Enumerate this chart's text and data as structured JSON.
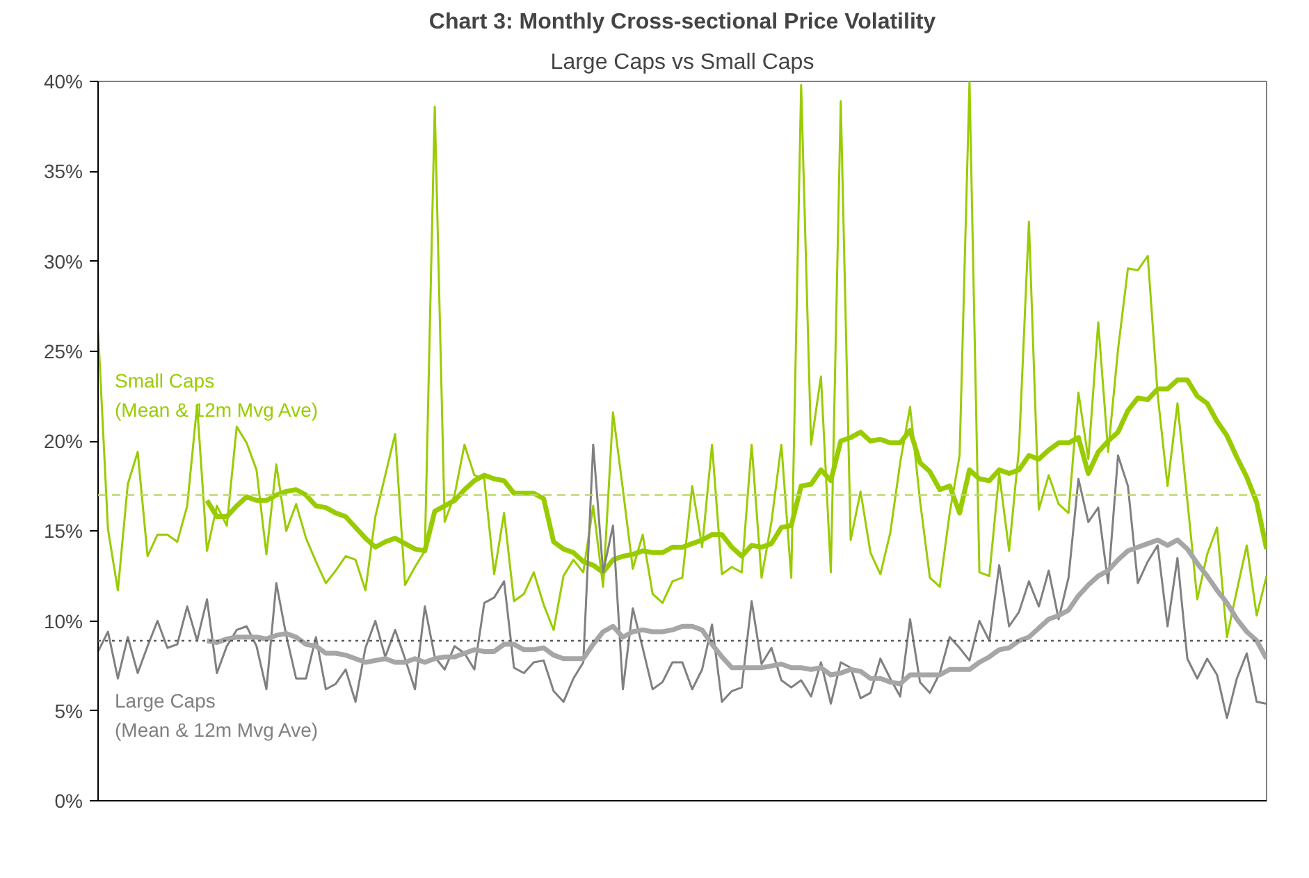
{
  "chart_data": {
    "type": "line",
    "title": "Chart 3: Monthly Cross-sectional Price Volatility",
    "subtitle": "Large Caps vs Small Caps",
    "categories": [
      null,
      null,
      null,
      null,
      null,
      null,
      null,
      null,
      null,
      null,
      null,
      null,
      null,
      null,
      null,
      null,
      null,
      null,
      null,
      null,
      null,
      null,
      null,
      null,
      null,
      null,
      null,
      null,
      null,
      null,
      null,
      null,
      null,
      null,
      null,
      null,
      null,
      null,
      null,
      null,
      null,
      null,
      null,
      null,
      null,
      null,
      null,
      null,
      null,
      null,
      null,
      null,
      null,
      null,
      null,
      null,
      null,
      null,
      null,
      null,
      null,
      null,
      null,
      null,
      null,
      null,
      null,
      null,
      null,
      null,
      null,
      null,
      null,
      null,
      null,
      null,
      null,
      null,
      null,
      null,
      null,
      null,
      null,
      null,
      null,
      null,
      null,
      null,
      null,
      null,
      null,
      null,
      null,
      null,
      null,
      null,
      null,
      null,
      null,
      null,
      null,
      null,
      null,
      null,
      null,
      null,
      null,
      null,
      null,
      null,
      null,
      null,
      null,
      null,
      null,
      null,
      null,
      null,
      null
    ],
    "series": [
      {
        "color": "#99cc00",
        "values": [
          26.2,
          15.1,
          11.7,
          17.6,
          19.4,
          13.6,
          14.8,
          14.8,
          14.4,
          16.4,
          22.0,
          13.9,
          16.4,
          15.3,
          20.8,
          19.9,
          18.4,
          13.7,
          18.7,
          15.0,
          16.5,
          14.6,
          13.3,
          12.1,
          12.8,
          13.6,
          13.4,
          11.7,
          15.8,
          18.1,
          20.4,
          12.0,
          13.0,
          13.9,
          38.6,
          15.5,
          17.0,
          19.8,
          18.1,
          17.9,
          12.6,
          16.0,
          11.1,
          11.5,
          12.7,
          10.9,
          9.5,
          12.5,
          13.4,
          12.7,
          16.4,
          11.9,
          21.6,
          17.3,
          12.9,
          14.8,
          11.5,
          11.0,
          12.2,
          12.4,
          17.5,
          14.1,
          19.8,
          12.6,
          13.0,
          12.7,
          19.8,
          12.4,
          15.5,
          19.8,
          12.4,
          39.8,
          19.8,
          23.6,
          12.7,
          38.9,
          14.5,
          17.2,
          13.8,
          12.6,
          14.9,
          18.8,
          21.9,
          16.7,
          12.4,
          11.9,
          16.0,
          19.2,
          40.0,
          12.7,
          12.5,
          18.2,
          13.9,
          19.6,
          32.2,
          16.2,
          18.1,
          16.5,
          16.0,
          22.7,
          19.0,
          26.6,
          19.4,
          25.1,
          29.6,
          29.5,
          30.3,
          22.6,
          17.5,
          22.1,
          16.7,
          11.2,
          13.7,
          15.2,
          9.1,
          11.7,
          14.2,
          10.3,
          12.5
        ]
      },
      {
        "color": "#99cc00",
        "values": [
          null,
          null,
          null,
          null,
          null,
          null,
          null,
          null,
          null,
          null,
          null,
          16.7,
          15.8,
          15.8,
          16.4,
          16.9,
          16.7,
          16.7,
          17.0,
          17.2,
          17.3,
          17.0,
          16.4,
          16.3,
          16.0,
          15.8,
          15.2,
          14.6,
          14.1,
          14.4,
          14.6,
          14.3,
          14.0,
          13.9,
          16.1,
          16.4,
          16.7,
          17.3,
          17.8,
          18.1,
          17.9,
          17.8,
          17.1,
          17.1,
          17.1,
          16.8,
          14.4,
          14.0,
          13.8,
          13.3,
          13.1,
          12.7,
          13.4,
          13.6,
          13.7,
          13.9,
          13.8,
          13.8,
          14.1,
          14.1,
          14.3,
          14.5,
          14.8,
          14.8,
          14.1,
          13.6,
          14.2,
          14.1,
          14.3,
          15.2,
          15.3,
          17.5,
          17.6,
          18.4,
          17.8,
          20.0,
          20.2,
          20.5,
          20.0,
          20.1,
          19.9,
          19.9,
          20.6,
          18.8,
          18.3,
          17.3,
          17.5,
          16.0,
          18.4,
          17.9,
          17.8,
          18.4,
          18.2,
          18.4,
          19.2,
          19.0,
          19.5,
          19.9,
          19.9,
          20.2,
          18.2,
          19.4,
          20.0,
          20.5,
          21.7,
          22.4,
          22.3,
          22.9,
          22.9,
          23.4,
          23.4,
          22.5,
          22.1,
          21.1,
          20.3,
          19.1,
          18.0,
          16.6,
          14.0
        ]
      },
      {
        "color": "#808080",
        "values": [
          8.3,
          9.4,
          6.8,
          9.1,
          7.1,
          8.6,
          10.0,
          8.5,
          8.7,
          10.8,
          8.9,
          11.2,
          7.1,
          8.6,
          9.5,
          9.7,
          8.6,
          6.2,
          12.1,
          9.2,
          6.8,
          6.8,
          9.1,
          6.2,
          6.5,
          7.3,
          5.5,
          8.5,
          10.0,
          8.0,
          9.5,
          7.9,
          6.2,
          10.8,
          8.0,
          7.3,
          8.6,
          8.2,
          7.3,
          11.0,
          11.3,
          12.2,
          7.4,
          7.1,
          7.7,
          7.8,
          6.1,
          5.5,
          6.8,
          7.7,
          19.8,
          12.7,
          15.3,
          6.2,
          10.7,
          8.5,
          6.2,
          6.6,
          7.7,
          7.7,
          6.2,
          7.3,
          9.8,
          5.5,
          6.1,
          6.3,
          11.1,
          7.6,
          8.5,
          6.7,
          6.3,
          6.7,
          5.8,
          7.7,
          5.4,
          7.7,
          7.4,
          5.7,
          6.0,
          7.9,
          6.8,
          5.8,
          10.1,
          6.6,
          6.0,
          7.1,
          9.1,
          8.5,
          7.8,
          10.0,
          8.9,
          13.1,
          9.7,
          10.5,
          12.2,
          10.8,
          12.8,
          10.1,
          12.4,
          17.9,
          15.5,
          16.3,
          12.1,
          19.2,
          17.5,
          12.1,
          13.3,
          14.2,
          9.7,
          13.5,
          7.9,
          6.8,
          7.9,
          7.0,
          4.6,
          6.8,
          8.2,
          5.5,
          5.4
        ]
      },
      {
        "color": "#a6a6a6",
        "values": [
          null,
          null,
          null,
          null,
          null,
          null,
          null,
          null,
          null,
          null,
          null,
          8.9,
          8.8,
          9.0,
          9.1,
          9.1,
          9.1,
          9.0,
          9.2,
          9.3,
          9.1,
          8.7,
          8.6,
          8.2,
          8.2,
          8.1,
          7.9,
          7.7,
          7.8,
          7.9,
          7.7,
          7.7,
          7.9,
          7.7,
          7.9,
          8.0,
          8.0,
          8.2,
          8.4,
          8.3,
          8.3,
          8.7,
          8.7,
          8.4,
          8.4,
          8.5,
          8.1,
          7.9,
          7.9,
          7.9,
          8.7,
          9.4,
          9.7,
          9.1,
          9.4,
          9.5,
          9.4,
          9.4,
          9.5,
          9.7,
          9.7,
          9.5,
          8.7,
          8.0,
          7.4,
          7.4,
          7.4,
          7.4,
          7.5,
          7.6,
          7.4,
          7.4,
          7.3,
          7.4,
          7.0,
          7.1,
          7.3,
          7.2,
          6.8,
          6.8,
          6.6,
          6.5,
          7.0,
          7.0,
          7.0,
          7.0,
          7.3,
          7.3,
          7.3,
          7.7,
          8.0,
          8.4,
          8.5,
          8.9,
          9.1,
          9.6,
          10.1,
          10.3,
          10.6,
          11.4,
          12.0,
          12.5,
          12.8,
          13.4,
          13.9,
          14.1,
          14.3,
          14.5,
          14.2,
          14.5,
          14.0,
          13.2,
          12.5,
          11.7,
          11.0,
          10.1,
          9.4,
          8.9,
          7.9
        ]
      }
    ],
    "ref_lines": [
      {
        "axis": "y",
        "value": 17.0,
        "color": "#bcd96b",
        "line_style": "dashed"
      },
      {
        "axis": "y",
        "value": 8.9,
        "color": "#595959",
        "line_style": "dotted"
      }
    ],
    "annotations": [
      "Small Caps\n(Mean & 12m Mvg Ave)",
      "Large Caps\n(Mean & 12m Mvg Ave)"
    ],
    "ylim": [
      0,
      40
    ],
    "yticks": [
      {
        "value": 0,
        "label": "0%"
      },
      {
        "value": 5,
        "label": "5%"
      },
      {
        "value": 10,
        "label": "10%"
      },
      {
        "value": 15,
        "label": "15%"
      },
      {
        "value": 20,
        "label": "20%"
      },
      {
        "value": 25,
        "label": "25%"
      },
      {
        "value": 30,
        "label": "30%"
      },
      {
        "value": 35,
        "label": "35%"
      },
      {
        "value": 40,
        "label": "40%"
      }
    ],
    "tick_labels": "y",
    "grid": false
  }
}
